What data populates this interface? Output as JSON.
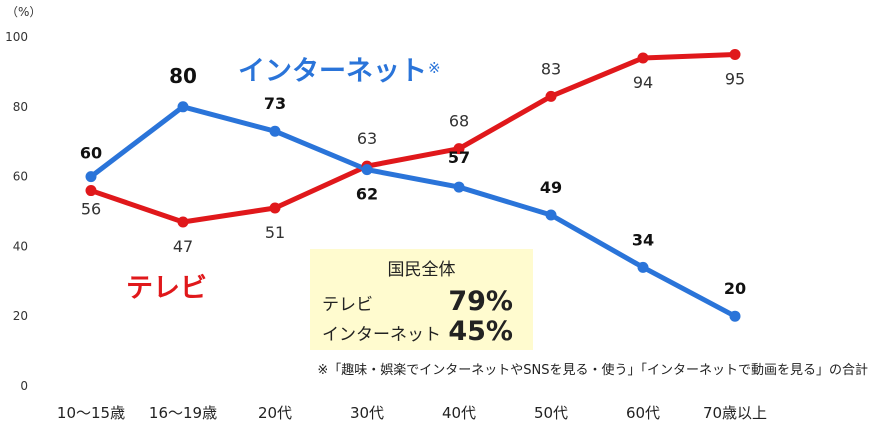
{
  "unit_label": "（%）",
  "chart_data": {
    "type": "line",
    "categories": [
      "10～15歳",
      "16～19歳",
      "20代",
      "30代",
      "40代",
      "50代",
      "60代",
      "70歳以上"
    ],
    "ylim": [
      0,
      100
    ],
    "yticks": [
      0,
      20,
      40,
      60,
      80,
      100
    ],
    "grid": false,
    "series": [
      {
        "name": "テレビ",
        "color": "#E0181B",
        "values": [
          56,
          47,
          51,
          63,
          68,
          83,
          94,
          95
        ]
      },
      {
        "name": "インターネット",
        "color": "#2A74D9",
        "values": [
          60,
          80,
          73,
          62,
          57,
          49,
          34,
          20
        ]
      }
    ]
  },
  "legend": {
    "internet": "インターネット",
    "internet_mark": "※",
    "tv": "テレビ"
  },
  "summary": {
    "title": "国民全体",
    "rows": [
      {
        "label": "テレビ",
        "value": "79%"
      },
      {
        "label": "インターネット",
        "value": "45%"
      }
    ]
  },
  "footnote": "※「趣味・娯楽でインターネットやSNSを見る・使う」「インターネットで動画を見る」の合計"
}
